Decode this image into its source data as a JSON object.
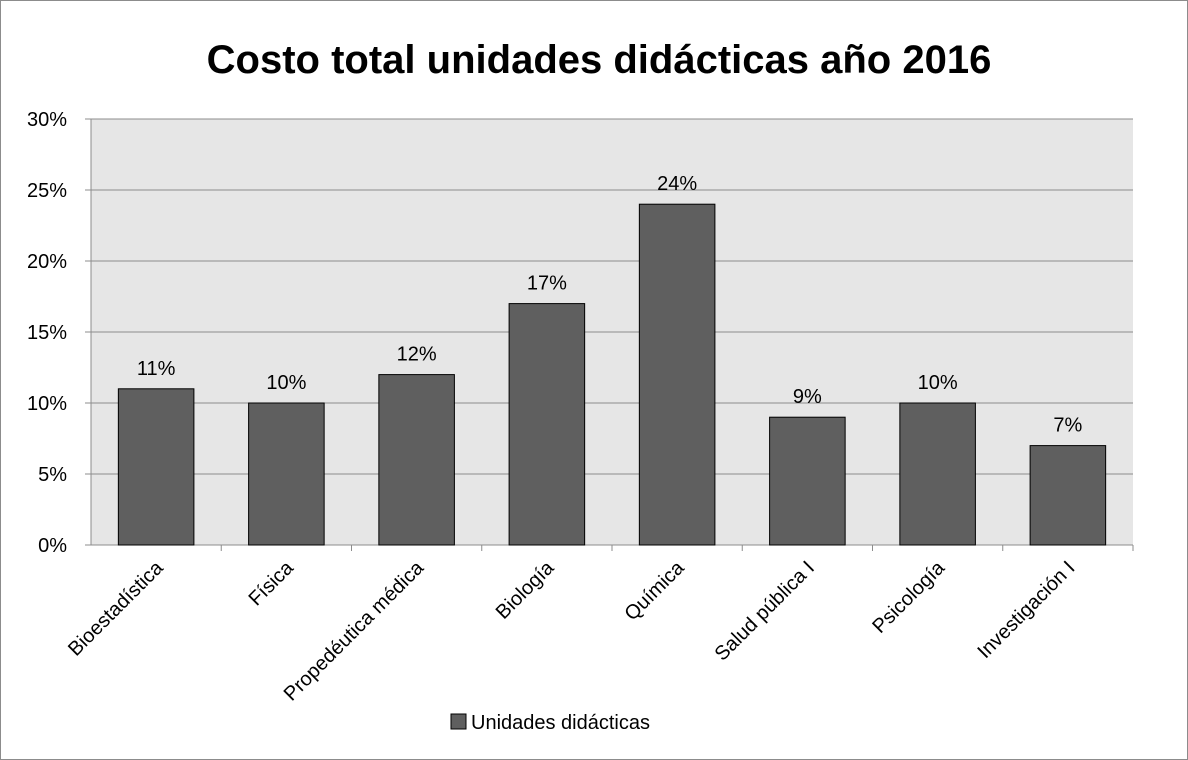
{
  "chart_data": {
    "type": "bar",
    "title": "Costo total unidades didácticas año 2016",
    "xlabel": "",
    "ylabel": "",
    "categories": [
      "Bioestadística",
      "Física",
      "Propedéutica médica",
      "Biología",
      "Química",
      "Salud pública I",
      "Psicología",
      "Investigación I"
    ],
    "series": [
      {
        "name": "Unidades didácticas",
        "values": [
          11,
          10,
          12,
          17,
          24,
          9,
          10,
          7
        ],
        "value_labels": [
          "11%",
          "10%",
          "12%",
          "17%",
          "24%",
          "9%",
          "10%",
          "7%"
        ]
      }
    ],
    "ylim": [
      0,
      30
    ],
    "y_ticks": [
      0,
      5,
      10,
      15,
      20,
      25,
      30
    ],
    "y_tick_labels": [
      "0%",
      "5%",
      "10%",
      "15%",
      "20%",
      "25%",
      "30%"
    ],
    "grid": true,
    "legend_position": "bottom",
    "colors": {
      "bar": "#5f5f5f",
      "bar_border": "#000000",
      "plot_background": "#e6e6e6",
      "gridline": "#8c8c8c"
    }
  }
}
